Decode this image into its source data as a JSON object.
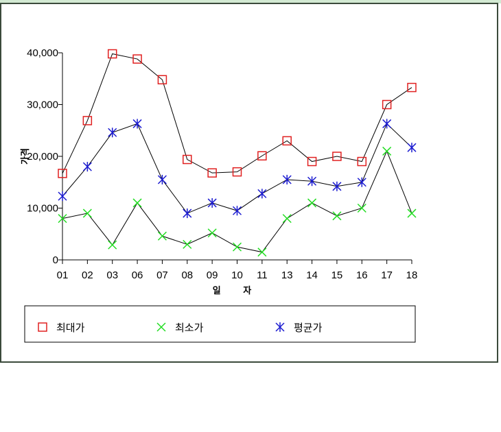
{
  "chart_data": {
    "type": "line",
    "xlabel": "일 자",
    "ylabel": "가격",
    "categories": [
      "01",
      "02",
      "03",
      "06",
      "07",
      "08",
      "09",
      "10",
      "11",
      "13",
      "14",
      "15",
      "16",
      "17",
      "18"
    ],
    "ylim": [
      0,
      40000
    ],
    "yticks": [
      0,
      10000,
      20000,
      30000,
      40000
    ],
    "ytick_labels": [
      "0",
      "10,000",
      "20,000",
      "30,000",
      "40,000"
    ],
    "legend_position": "bottom",
    "series": [
      {
        "name": "최대가",
        "marker": "square",
        "color": "#e02020",
        "values": [
          16700,
          26900,
          39800,
          38800,
          34800,
          19400,
          16800,
          17000,
          20100,
          23000,
          19000,
          20000,
          19000,
          30000,
          33300
        ]
      },
      {
        "name": "최소가",
        "marker": "x",
        "color": "#22dd22",
        "values": [
          8000,
          9000,
          2900,
          11000,
          4600,
          3000,
          5200,
          2500,
          1500,
          8000,
          11000,
          8500,
          10000,
          21000,
          9000
        ]
      },
      {
        "name": "평균가",
        "marker": "asterisk",
        "color": "#1a1ad0",
        "values": [
          12300,
          18000,
          24600,
          26300,
          15500,
          9000,
          11000,
          9500,
          12800,
          15500,
          15200,
          14200,
          15000,
          26300,
          21700
        ]
      }
    ]
  }
}
